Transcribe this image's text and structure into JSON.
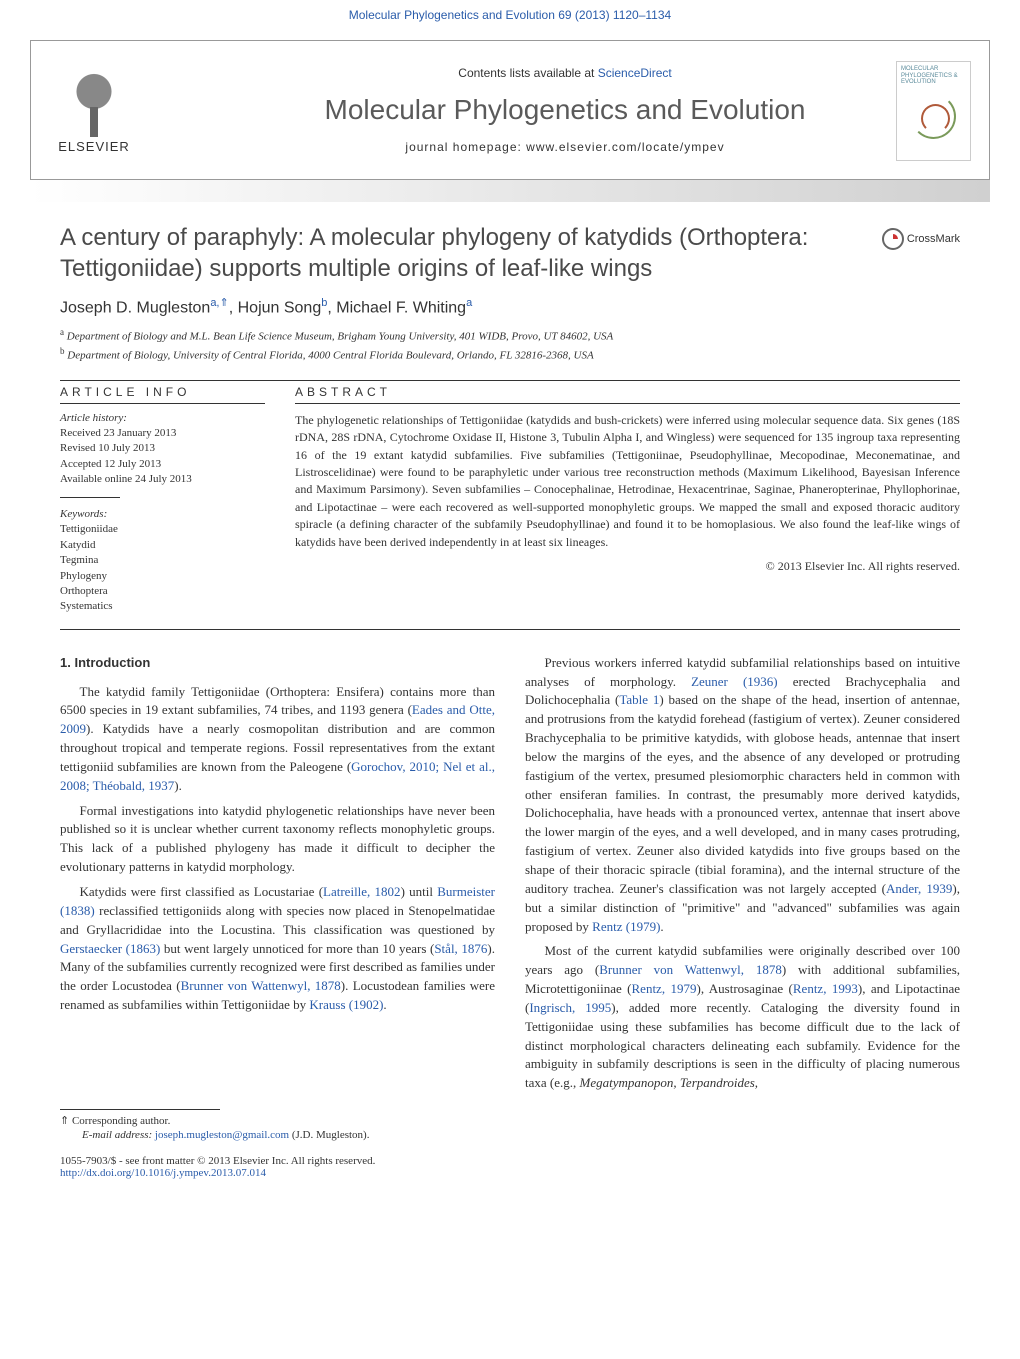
{
  "top_link_text": "Molecular Phylogenetics and Evolution 69 (2013) 1120–1134",
  "header": {
    "contents_prefix": "Contents lists available at ",
    "contents_link": "ScienceDirect",
    "journal_title": "Molecular Phylogenetics and Evolution",
    "homepage_prefix": "journal homepage: ",
    "homepage_url": "www.elsevier.com/locate/ympev",
    "publisher_name": "ELSEVIER",
    "cover_title": "MOLECULAR PHYLOGENETICS & EVOLUTION"
  },
  "crossmark_label": "CrossMark",
  "article": {
    "title": "A century of paraphyly: A molecular phylogeny of katydids (Orthoptera: Tettigoniidae) supports multiple origins of leaf-like wings",
    "authors_html": "Joseph D. Mugleston",
    "author_sup_a": "a,",
    "author_star": "⇑",
    "author2": ", Hojun Song",
    "author_sup_b": "b",
    "author3": ", Michael F. Whiting",
    "author_sup_a2": "a",
    "affiliations": {
      "a": "Department of Biology and M.L. Bean Life Science Museum, Brigham Young University, 401 WIDB, Provo, UT 84602, USA",
      "b": "Department of Biology, University of Central Florida, 4000 Central Florida Boulevard, Orlando, FL 32816-2368, USA"
    }
  },
  "info": {
    "heading": "ARTICLE INFO",
    "history_label": "Article history:",
    "history": [
      "Received 23 January 2013",
      "Revised 10 July 2013",
      "Accepted 12 July 2013",
      "Available online 24 July 2013"
    ],
    "keywords_label": "Keywords:",
    "keywords": [
      "Tettigoniidae",
      "Katydid",
      "Tegmina",
      "Phylogeny",
      "Orthoptera",
      "Systematics"
    ]
  },
  "abstract": {
    "heading": "ABSTRACT",
    "text": "The phylogenetic relationships of Tettigoniidae (katydids and bush-crickets) were inferred using molecular sequence data. Six genes (18S rDNA, 28S rDNA, Cytochrome Oxidase II, Histone 3, Tubulin Alpha I, and Wingless) were sequenced for 135 ingroup taxa representing 16 of the 19 extant katydid subfamilies. Five subfamilies (Tettigoniinae, Pseudophyllinae, Mecopodinae, Meconematinae, and Listroscelidinae) were found to be paraphyletic under various tree reconstruction methods (Maximum Likelihood, Bayesisan Inference and Maximum Parsimony). Seven subfamilies – Conocephalinae, Hetrodinae, Hexacentrinae, Saginae, Phaneropterinae, Phyllophorinae, and Lipotactinae – were each recovered as well-supported monophyletic groups. We mapped the small and exposed thoracic auditory spiracle (a defining character of the subfamily Pseudophyllinae) and found it to be homoplasious. We also found the leaf-like wings of katydids have been derived independently in at least six lineages.",
    "copyright": "© 2013 Elsevier Inc. All rights reserved."
  },
  "body": {
    "intro_heading": "1. Introduction",
    "col1": {
      "p1_a": "The katydid family Tettigoniidae (Orthoptera: Ensifera) contains more than 6500 species in 19 extant subfamilies, 74 tribes, and 1193 genera (",
      "p1_cite1": "Eades and Otte, 2009",
      "p1_b": "). Katydids have a nearly cosmopolitan distribution and are common throughout tropical and temperate regions. Fossil representatives from the extant tettigoniid subfamilies are known from the Paleogene (",
      "p1_cite2": "Gorochov, 2010; Nel et al., 2008; Théobald, 1937",
      "p1_c": ").",
      "p2": "Formal investigations into katydid phylogenetic relationships have never been published so it is unclear whether current taxonomy reflects monophyletic groups. This lack of a published phylogeny has made it difficult to decipher the evolutionary patterns in katydid morphology.",
      "p3_a": "Katydids were first classified as Locustariae (",
      "p3_cite1": "Latreille, 1802",
      "p3_b": ") until ",
      "p3_cite2": "Burmeister (1838)",
      "p3_c": " reclassified tettigoniids along with species now placed in Stenopelmatidae and Gryllacrididae into the Locustina. This classification was questioned by ",
      "p3_cite3": "Gerstaecker (1863)",
      "p3_d": " but went largely unnoticed for more than 10 years (",
      "p3_cite4": "Stål, 1876",
      "p3_e": "). Many of the subfamilies currently recognized were first described as families under the order Locustodea (",
      "p3_cite5": "Brunner von Wattenwyl, 1878",
      "p3_f": "). Locustodean families were renamed as subfamilies within Tettigoniidae by ",
      "p3_cite6": "Krauss (1902)",
      "p3_g": "."
    },
    "col2": {
      "p1_a": "Previous workers inferred katydid subfamilial relationships based on intuitive analyses of morphology. ",
      "p1_cite1": "Zeuner (1936)",
      "p1_b": " erected Brachycephalia and Dolichocephalia (",
      "p1_cite2": "Table 1",
      "p1_c": ") based on the shape of the head, insertion of antennae, and protrusions from the katydid forehead (fastigium of vertex). Zeuner considered Brachycephalia to be primitive katydids, with globose heads, antennae that insert below the margins of the eyes, and the absence of any developed or protruding fastigium of the vertex, presumed plesiomorphic characters held in common with other ensiferan families. In contrast, the presumably more derived katydids, Dolichocephalia, have heads with a pronounced vertex, antennae that insert above the lower margin of the eyes, and a well developed, and in many cases protruding, fastigium of vertex. Zeuner also divided katydids into five groups based on the shape of their thoracic spiracle (tibial foramina), and the internal structure of the auditory trachea. Zeuner's classification was not largely accepted (",
      "p1_cite3": "Ander, 1939",
      "p1_d": "), but a similar distinction of \"primitive\" and \"advanced\" subfamilies was again proposed by ",
      "p1_cite4": "Rentz (1979)",
      "p1_e": ".",
      "p2_a": "Most of the current katydid subfamilies were originally described over 100 years ago (",
      "p2_cite1": "Brunner von Wattenwyl, 1878",
      "p2_b": ") with additional subfamilies, Microtettigoniinae (",
      "p2_cite2": "Rentz, 1979",
      "p2_c": "), Austrosaginae (",
      "p2_cite3": "Rentz, 1993",
      "p2_d": "), and Lipotactinae (",
      "p2_cite4": "Ingrisch, 1995",
      "p2_e": "), added more recently. Cataloging the diversity found in Tettigoniidae using these subfamilies has become difficult due to the lack of distinct morphological characters delineating each subfamily. Evidence for the ambiguity in subfamily descriptions is seen in the difficulty of placing numerous taxa (e.g., ",
      "p2_taxa": "Megatympanopon, Terpandroides,"
    }
  },
  "footer": {
    "corresponding": "⇑ Corresponding author.",
    "email_prefix": "E-mail address: ",
    "email": "joseph.mugleston@gmail.com",
    "email_suffix": " (J.D. Mugleston).",
    "issn": "1055-7903/$ - see front matter © 2013 Elsevier Inc. All rights reserved.",
    "doi": "http://dx.doi.org/10.1016/j.ympev.2013.07.014"
  },
  "colors": {
    "link": "#2a5caa",
    "heading_gray": "#5a5a5a",
    "border": "#999",
    "text": "#333"
  }
}
